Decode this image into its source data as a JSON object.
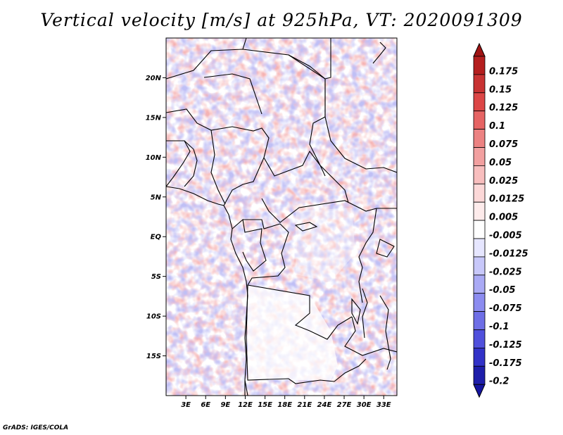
{
  "title": "Vertical velocity [m/s] at 925hPa, VT: 2020091309",
  "credit": "GrADS: IGES/COLA",
  "map": {
    "lon_range": [
      0,
      35
    ],
    "lat_range": [
      -20,
      25
    ],
    "lat_labels": [
      {
        "lat": 20,
        "text": "20N"
      },
      {
        "lat": 15,
        "text": "15N"
      },
      {
        "lat": 10,
        "text": "10N"
      },
      {
        "lat": 5,
        "text": "5N"
      },
      {
        "lat": 0,
        "text": "EQ"
      },
      {
        "lat": -5,
        "text": "5S"
      },
      {
        "lat": -10,
        "text": "10S"
      },
      {
        "lat": -15,
        "text": "15S"
      }
    ],
    "lon_labels": [
      {
        "lon": 3,
        "text": "3E"
      },
      {
        "lon": 6,
        "text": "6E"
      },
      {
        "lon": 9,
        "text": "9E"
      },
      {
        "lon": 12,
        "text": "12E"
      },
      {
        "lon": 15,
        "text": "15E"
      },
      {
        "lon": 18,
        "text": "18E"
      },
      {
        "lon": 21,
        "text": "21E"
      },
      {
        "lon": 24,
        "text": "24E"
      },
      {
        "lon": 27,
        "text": "27E"
      },
      {
        "lon": 30,
        "text": "30E"
      },
      {
        "lon": 33,
        "text": "33E"
      }
    ]
  },
  "colorbar": {
    "levels": [
      {
        "label": "0.175",
        "color": "#b41e1e"
      },
      {
        "label": "0.15",
        "color": "#c83232"
      },
      {
        "label": "0.125",
        "color": "#dc4646"
      },
      {
        "label": "0.1",
        "color": "#e66464"
      },
      {
        "label": "0.075",
        "color": "#ec8282"
      },
      {
        "label": "0.05",
        "color": "#f2a0a0"
      },
      {
        "label": "0.025",
        "color": "#f8bebe"
      },
      {
        "label": "0.0125",
        "color": "#fcd8d8"
      },
      {
        "label": "0.005",
        "color": "#fdebeb"
      },
      {
        "label": "-0.005",
        "color": "#ffffff"
      },
      {
        "label": "-0.0125",
        "color": "#e6e6ff"
      },
      {
        "label": "-0.025",
        "color": "#c8c8fa"
      },
      {
        "label": "-0.05",
        "color": "#aaaaf5"
      },
      {
        "label": "-0.075",
        "color": "#8c8cf0"
      },
      {
        "label": "-0.1",
        "color": "#6e6ee6"
      },
      {
        "label": "-0.125",
        "color": "#5050dc"
      },
      {
        "label": "-0.175",
        "color": "#3232c8"
      },
      {
        "label": "-0.2",
        "color": "#1e1eaa"
      }
    ],
    "top_color": "#a01414",
    "bottom_color": "#1414a0"
  }
}
